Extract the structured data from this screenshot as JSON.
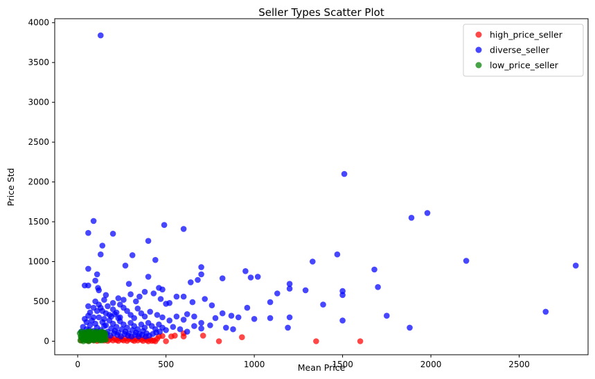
{
  "chart_data": {
    "type": "scatter",
    "title": "Seller Types Scatter Plot",
    "xlabel": "Mean Price",
    "ylabel": "Price Std",
    "xlim": [
      -130,
      2890
    ],
    "ylim": [
      -170,
      4050
    ],
    "xticks": [
      0,
      500,
      1000,
      1500,
      2000,
      2500
    ],
    "yticks": [
      0,
      500,
      1000,
      1500,
      2000,
      2500,
      3000,
      3500,
      4000
    ],
    "grid": false,
    "legend_position": "top-right",
    "series": [
      {
        "name": "high_price_seller",
        "color": "#ff0000",
        "points": [
          [
            20,
            10
          ],
          [
            35,
            25
          ],
          [
            50,
            15
          ],
          [
            60,
            5
          ],
          [
            70,
            30
          ],
          [
            80,
            20
          ],
          [
            90,
            10
          ],
          [
            100,
            35
          ],
          [
            110,
            5
          ],
          [
            120,
            25
          ],
          [
            130,
            15
          ],
          [
            140,
            40
          ],
          [
            150,
            10
          ],
          [
            160,
            30
          ],
          [
            170,
            5
          ],
          [
            180,
            20
          ],
          [
            190,
            45
          ],
          [
            200,
            10
          ],
          [
            210,
            30
          ],
          [
            220,
            15
          ],
          [
            230,
            5
          ],
          [
            240,
            40
          ],
          [
            250,
            20
          ],
          [
            260,
            10
          ],
          [
            270,
            35
          ],
          [
            280,
            5
          ],
          [
            290,
            25
          ],
          [
            300,
            45
          ],
          [
            310,
            15
          ],
          [
            320,
            5
          ],
          [
            330,
            30
          ],
          [
            340,
            10
          ],
          [
            350,
            40
          ],
          [
            360,
            20
          ],
          [
            370,
            5
          ],
          [
            380,
            35
          ],
          [
            390,
            15
          ],
          [
            400,
            0
          ],
          [
            410,
            25
          ],
          [
            420,
            5
          ],
          [
            430,
            10
          ],
          [
            440,
            0
          ],
          [
            450,
            30
          ],
          [
            460,
            60
          ],
          [
            480,
            65
          ],
          [
            500,
            0
          ],
          [
            530,
            60
          ],
          [
            550,
            70
          ],
          [
            600,
            60
          ],
          [
            600,
            100
          ],
          [
            710,
            70
          ],
          [
            800,
            0
          ],
          [
            930,
            50
          ],
          [
            1350,
            0
          ],
          [
            1600,
            0
          ]
        ]
      },
      {
        "name": "diverse_seller",
        "color": "#0000ff",
        "points": [
          [
            130,
            3840
          ],
          [
            1510,
            2100
          ],
          [
            1980,
            1610
          ],
          [
            1890,
            1550
          ],
          [
            90,
            1510
          ],
          [
            490,
            1460
          ],
          [
            600,
            1410
          ],
          [
            60,
            1360
          ],
          [
            200,
            1350
          ],
          [
            400,
            1260
          ],
          [
            140,
            1200
          ],
          [
            130,
            1090
          ],
          [
            310,
            1080
          ],
          [
            440,
            1020
          ],
          [
            2200,
            1010
          ],
          [
            1330,
            1000
          ],
          [
            1470,
            1090
          ],
          [
            270,
            950
          ],
          [
            700,
            930
          ],
          [
            2820,
            950
          ],
          [
            60,
            910
          ],
          [
            1680,
            900
          ],
          [
            950,
            880
          ],
          [
            400,
            810
          ],
          [
            980,
            800
          ],
          [
            1020,
            810
          ],
          [
            820,
            790
          ],
          [
            700,
            840
          ],
          [
            680,
            770
          ],
          [
            640,
            740
          ],
          [
            1700,
            680
          ],
          [
            1200,
            720
          ],
          [
            1130,
            600
          ],
          [
            1290,
            640
          ],
          [
            1500,
            630
          ],
          [
            1200,
            660
          ],
          [
            500,
            470
          ],
          [
            520,
            480
          ],
          [
            460,
            670
          ],
          [
            470,
            530
          ],
          [
            110,
            840
          ],
          [
            100,
            760
          ],
          [
            40,
            700
          ],
          [
            60,
            700
          ],
          [
            115,
            670
          ],
          [
            120,
            640
          ],
          [
            160,
            580
          ],
          [
            300,
            590
          ],
          [
            290,
            720
          ],
          [
            350,
            560
          ],
          [
            380,
            620
          ],
          [
            430,
            600
          ],
          [
            480,
            650
          ],
          [
            560,
            560
          ],
          [
            600,
            560
          ],
          [
            650,
            490
          ],
          [
            720,
            530
          ],
          [
            760,
            450
          ],
          [
            820,
            350
          ],
          [
            870,
            320
          ],
          [
            910,
            300
          ],
          [
            960,
            420
          ],
          [
            1000,
            280
          ],
          [
            1090,
            490
          ],
          [
            1090,
            290
          ],
          [
            1200,
            300
          ],
          [
            1190,
            170
          ],
          [
            1390,
            460
          ],
          [
            1500,
            580
          ],
          [
            1500,
            260
          ],
          [
            1750,
            320
          ],
          [
            1880,
            170
          ],
          [
            2650,
            370
          ],
          [
            60,
            440
          ],
          [
            90,
            420
          ],
          [
            120,
            460
          ],
          [
            140,
            380
          ],
          [
            160,
            350
          ],
          [
            180,
            330
          ],
          [
            200,
            400
          ],
          [
            220,
            360
          ],
          [
            240,
            300
          ],
          [
            260,
            420
          ],
          [
            280,
            380
          ],
          [
            300,
            330
          ],
          [
            320,
            290
          ],
          [
            340,
            410
          ],
          [
            360,
            350
          ],
          [
            380,
            310
          ],
          [
            410,
            370
          ],
          [
            450,
            330
          ],
          [
            480,
            300
          ],
          [
            520,
            260
          ],
          [
            560,
            310
          ],
          [
            600,
            270
          ],
          [
            620,
            340
          ],
          [
            660,
            310
          ],
          [
            700,
            230
          ],
          [
            750,
            200
          ],
          [
            780,
            290
          ],
          [
            840,
            170
          ],
          [
            880,
            150
          ],
          [
            40,
            280
          ],
          [
            60,
            320
          ],
          [
            80,
            260
          ],
          [
            100,
            220
          ],
          [
            120,
            300
          ],
          [
            140,
            240
          ],
          [
            160,
            200
          ],
          [
            180,
            260
          ],
          [
            200,
            220
          ],
          [
            220,
            180
          ],
          [
            240,
            250
          ],
          [
            260,
            210
          ],
          [
            280,
            170
          ],
          [
            300,
            230
          ],
          [
            320,
            190
          ],
          [
            340,
            150
          ],
          [
            360,
            210
          ],
          [
            380,
            170
          ],
          [
            400,
            230
          ],
          [
            420,
            190
          ],
          [
            440,
            150
          ],
          [
            460,
            210
          ],
          [
            480,
            170
          ],
          [
            500,
            140
          ],
          [
            540,
            180
          ],
          [
            580,
            150
          ],
          [
            620,
            120
          ],
          [
            660,
            190
          ],
          [
            700,
            160
          ],
          [
            30,
            180
          ],
          [
            50,
            150
          ],
          [
            70,
            200
          ],
          [
            90,
            130
          ],
          [
            110,
            170
          ],
          [
            130,
            140
          ],
          [
            150,
            190
          ],
          [
            170,
            120
          ],
          [
            190,
            160
          ],
          [
            210,
            130
          ],
          [
            230,
            110
          ],
          [
            250,
            150
          ],
          [
            270,
            120
          ],
          [
            290,
            100
          ],
          [
            310,
            140
          ],
          [
            330,
            110
          ],
          [
            350,
            90
          ],
          [
            370,
            130
          ],
          [
            390,
            100
          ],
          [
            20,
            120
          ],
          [
            45,
            100
          ],
          [
            65,
            140
          ],
          [
            85,
            90
          ],
          [
            105,
            120
          ],
          [
            125,
            80
          ],
          [
            145,
            110
          ],
          [
            165,
            90
          ],
          [
            185,
            70
          ],
          [
            205,
            100
          ],
          [
            225,
            80
          ],
          [
            245,
            60
          ],
          [
            265,
            90
          ],
          [
            285,
            70
          ],
          [
            305,
            60
          ],
          [
            325,
            80
          ],
          [
            345,
            60
          ],
          [
            365,
            80
          ],
          [
            385,
            60
          ],
          [
            405,
            70
          ],
          [
            425,
            90
          ],
          [
            445,
            110
          ],
          [
            465,
            120
          ],
          [
            200,
            480
          ],
          [
            240,
            460
          ],
          [
            100,
            500
          ],
          [
            150,
            520
          ],
          [
            230,
            540
          ],
          [
            260,
            520
          ],
          [
            330,
            500
          ],
          [
            50,
            240
          ],
          [
            70,
            360
          ],
          [
            90,
            300
          ],
          [
            110,
            380
          ],
          [
            130,
            420
          ],
          [
            150,
            280
          ],
          [
            170,
            440
          ],
          [
            190,
            310
          ],
          [
            210,
            340
          ],
          [
            230,
            290
          ]
        ]
      },
      {
        "name": "low_price_seller",
        "color": "#008000",
        "points": [
          [
            15,
            10
          ],
          [
            20,
            50
          ],
          [
            25,
            90
          ],
          [
            30,
            20
          ],
          [
            35,
            70
          ],
          [
            40,
            110
          ],
          [
            45,
            30
          ],
          [
            50,
            80
          ],
          [
            55,
            120
          ],
          [
            60,
            40
          ],
          [
            65,
            100
          ],
          [
            70,
            10
          ],
          [
            75,
            60
          ],
          [
            80,
            120
          ],
          [
            85,
            30
          ],
          [
            90,
            90
          ],
          [
            95,
            50
          ],
          [
            100,
            110
          ],
          [
            105,
            20
          ],
          [
            110,
            70
          ],
          [
            115,
            40
          ],
          [
            120,
            100
          ],
          [
            125,
            10
          ],
          [
            130,
            60
          ],
          [
            135,
            120
          ],
          [
            140,
            30
          ],
          [
            145,
            80
          ],
          [
            150,
            50
          ],
          [
            155,
            100
          ],
          [
            160,
            20
          ],
          [
            18,
            60
          ],
          [
            28,
            40
          ],
          [
            38,
            80
          ],
          [
            48,
            10
          ],
          [
            58,
            60
          ],
          [
            68,
            120
          ],
          [
            78,
            90
          ],
          [
            88,
            20
          ],
          [
            98,
            70
          ],
          [
            108,
            120
          ],
          [
            118,
            50
          ],
          [
            128,
            90
          ],
          [
            138,
            10
          ],
          [
            148,
            110
          ],
          [
            158,
            70
          ],
          [
            12,
            100
          ],
          [
            22,
            120
          ],
          [
            32,
            0
          ],
          [
            42,
            50
          ],
          [
            52,
            100
          ],
          [
            62,
            0
          ],
          [
            72,
            80
          ],
          [
            82,
            50
          ],
          [
            92,
            10
          ],
          [
            102,
            60
          ],
          [
            112,
            90
          ],
          [
            122,
            30
          ],
          [
            132,
            110
          ],
          [
            142,
            60
          ],
          [
            152,
            20
          ]
        ]
      }
    ]
  }
}
